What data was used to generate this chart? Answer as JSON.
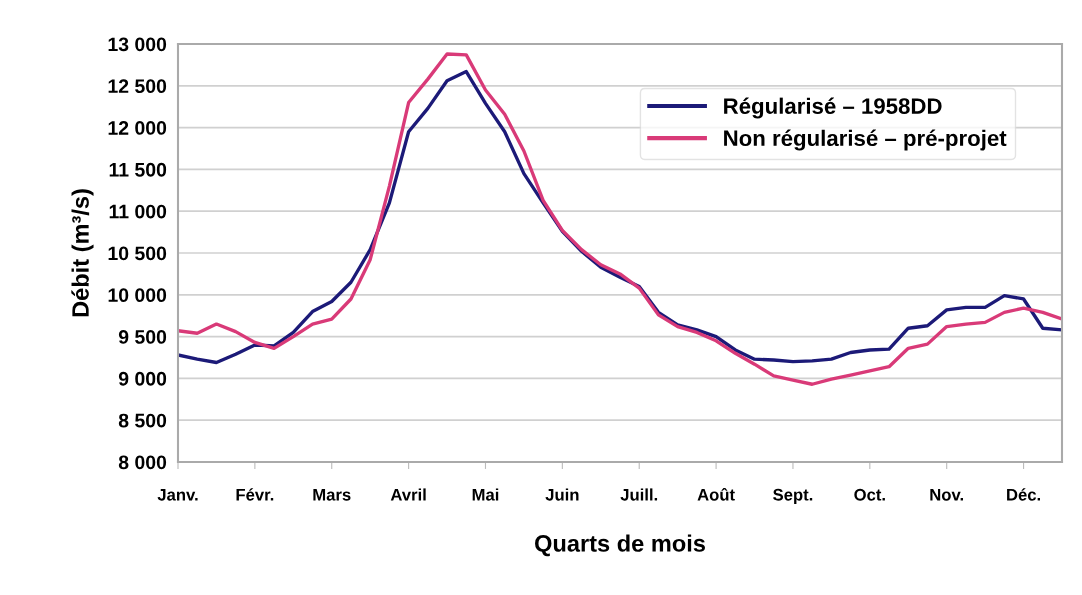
{
  "chart_data": {
    "type": "line",
    "xlabel": "Quarts de mois",
    "ylabel": "Débit (m³/s)",
    "categories": [
      "Janv.",
      null,
      null,
      null,
      "Févr.",
      null,
      null,
      null,
      "Mars",
      null,
      null,
      null,
      "Avril",
      null,
      null,
      null,
      "Mai",
      null,
      null,
      null,
      "Juin",
      null,
      null,
      null,
      "Juill.",
      null,
      null,
      null,
      "Août",
      null,
      null,
      null,
      "Sept.",
      null,
      null,
      null,
      "Oct.",
      null,
      null,
      null,
      "Nov.",
      null,
      null,
      null,
      "Déc.",
      null,
      null
    ],
    "ylim": [
      8000,
      13000
    ],
    "yticks": [
      {
        "value": 8000,
        "label": "8 000"
      },
      {
        "value": 8500,
        "label": "8 500"
      },
      {
        "value": 9000,
        "label": "9 000"
      },
      {
        "value": 9500,
        "label": "9 500"
      },
      {
        "value": 10000,
        "label": "10 000"
      },
      {
        "value": 10500,
        "label": "10 500"
      },
      {
        "value": 11000,
        "label": "11 000"
      },
      {
        "value": 11500,
        "label": "11 500"
      },
      {
        "value": 12000,
        "label": "12 000"
      },
      {
        "value": 12500,
        "label": "12 500"
      },
      {
        "value": 13000,
        "label": "13 000"
      }
    ],
    "grid": "y",
    "legend": "top right",
    "marker": "none",
    "line_style": "solid",
    "series": [
      {
        "name": "Régularisé – 1958DD",
        "color": "#1c1a78",
        "values": [
          9280,
          9230,
          9190,
          9290,
          9400,
          9390,
          9550,
          9800,
          9920,
          10150,
          10540,
          11100,
          11950,
          12230,
          12560,
          12670,
          12290,
          11950,
          11450,
          11100,
          10760,
          10520,
          10330,
          10210,
          10100,
          9790,
          9640,
          9580,
          9500,
          9340,
          9230,
          9220,
          9200,
          9210,
          9230,
          9310,
          9340,
          9350,
          9600,
          9630,
          9820,
          9850,
          9850,
          9990,
          9950,
          9600,
          9580
        ]
      },
      {
        "name": "Non régularisé – pré-projet",
        "color": "#d93a78",
        "values": [
          9570,
          9540,
          9650,
          9560,
          9430,
          9360,
          9500,
          9650,
          9710,
          9950,
          10420,
          11300,
          12300,
          12580,
          12880,
          12870,
          12450,
          12160,
          11720,
          11130,
          10770,
          10540,
          10360,
          10250,
          10080,
          9760,
          9620,
          9550,
          9450,
          9300,
          9170,
          9030,
          8980,
          8930,
          8990,
          9040,
          9090,
          9140,
          9360,
          9410,
          9620,
          9650,
          9670,
          9790,
          9840,
          9790,
          9710
        ]
      }
    ]
  }
}
